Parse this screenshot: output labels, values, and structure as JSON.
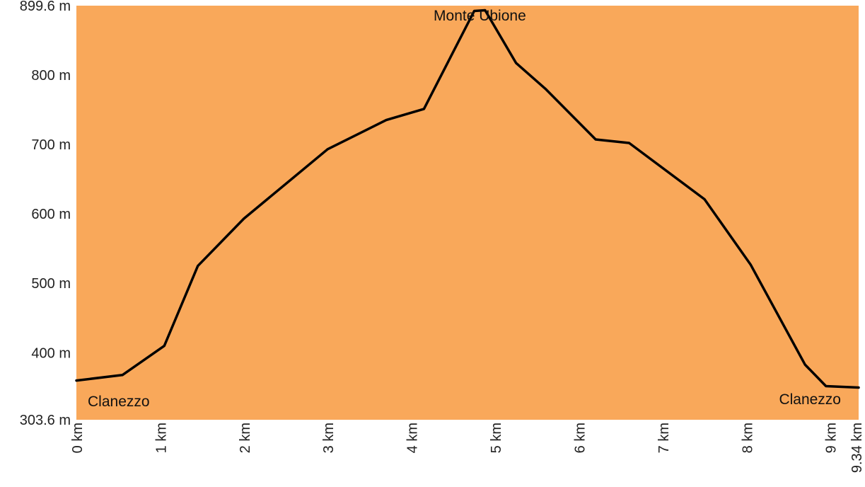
{
  "chart_data": {
    "type": "area",
    "title": "",
    "xlabel": "",
    "ylabel": "",
    "fill_color": "#F9A85A",
    "line_color": "#000000",
    "xlim": [
      0,
      9.34
    ],
    "ylim": [
      303.6,
      899.6
    ],
    "x_ticks": [
      0,
      1,
      2,
      3,
      4,
      5,
      6,
      7,
      8,
      9,
      9.34
    ],
    "x_tick_labels": [
      "0 km",
      "1 km",
      "2 km",
      "3 km",
      "4 km",
      "5 km",
      "6 km",
      "7 km",
      "8 km",
      "9 km",
      "9.34 km"
    ],
    "y_ticks": [
      303.6,
      400,
      500,
      600,
      700,
      800,
      899.6
    ],
    "y_tick_labels": [
      "303.6 m",
      "400 m",
      "500 m",
      "600 m",
      "700 m",
      "800 m",
      "899.6 m"
    ],
    "grid": false,
    "series": [
      {
        "x": [
          0,
          0.55,
          1.05,
          1.45,
          2.0,
          3.0,
          3.7,
          4.15,
          4.75,
          4.88,
          5.25,
          5.6,
          6.2,
          6.6,
          7.5,
          8.05,
          8.7,
          8.95,
          9.34
        ],
        "y": [
          360,
          368,
          410,
          525,
          593,
          693,
          735,
          751,
          892,
          893,
          817,
          780,
          707,
          702,
          621,
          527,
          383,
          352,
          350
        ]
      }
    ],
    "annotations": [
      {
        "text": "Monte Ubione",
        "x": 4.8,
        "y": 899.6
      },
      {
        "text": "Clanezzo",
        "x": 0,
        "y": 303.6
      },
      {
        "text": "Clanezzo",
        "x": 9.34,
        "y": 303.6
      }
    ]
  }
}
